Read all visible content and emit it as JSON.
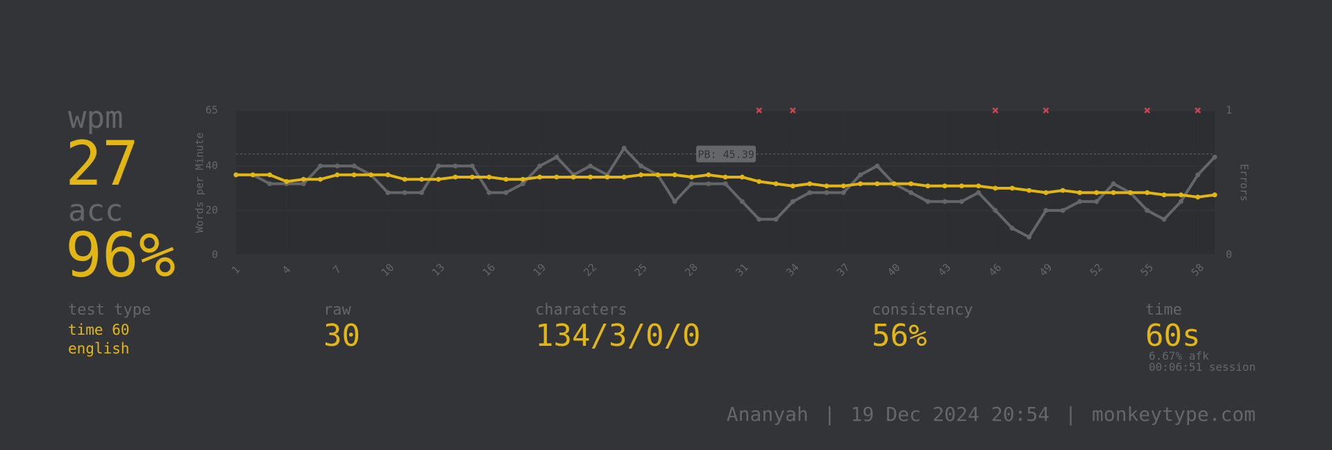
{
  "summary": {
    "wpm_label": "wpm",
    "wpm": "27",
    "acc_label": "acc",
    "acc": "96%"
  },
  "stats": {
    "test_type_label": "test type",
    "test_type": "time 60",
    "language": "english",
    "raw_label": "raw",
    "raw": "30",
    "characters_label": "characters",
    "characters": "134/3/0/0",
    "consistency_label": "consistency",
    "consistency": "56%",
    "time_label": "time",
    "time": "60s",
    "afk": "6.67% afk",
    "session": "00:06:51 session"
  },
  "footer": {
    "user": "Ananyah",
    "separator": "|",
    "date": "19 Dec 2024 20:54",
    "site": "monkeytype.com"
  },
  "chart_data": {
    "type": "line",
    "y_label": "Words per Minute",
    "y2_label": "Errors",
    "x": [
      1,
      2,
      3,
      4,
      5,
      6,
      7,
      8,
      9,
      10,
      11,
      12,
      13,
      14,
      15,
      16,
      17,
      18,
      19,
      20,
      21,
      22,
      23,
      24,
      25,
      26,
      27,
      28,
      29,
      30,
      31,
      32,
      33,
      34,
      35,
      36,
      37,
      38,
      39,
      40,
      41,
      42,
      43,
      44,
      45,
      46,
      47,
      48,
      49,
      50,
      51,
      52,
      53,
      54,
      55,
      56,
      57,
      58,
      59
    ],
    "xlim": [
      1,
      59
    ],
    "xticks": [
      1,
      4,
      7,
      10,
      13,
      16,
      19,
      22,
      25,
      28,
      31,
      34,
      37,
      40,
      43,
      46,
      49,
      52,
      55,
      58
    ],
    "ylim": [
      0,
      65
    ],
    "yticks": [
      0,
      20,
      40,
      65
    ],
    "y2lim": [
      0,
      1
    ],
    "y2ticks": [
      0,
      1
    ],
    "grid": true,
    "series": [
      {
        "name": "raw",
        "color": "#646669",
        "values": [
          36,
          36,
          32,
          32,
          32,
          40,
          40,
          40,
          36,
          28,
          28,
          28,
          40,
          40,
          40,
          28,
          28,
          32,
          40,
          44,
          36,
          40,
          36,
          48,
          40,
          36,
          24,
          32,
          32,
          32,
          24,
          16,
          16,
          24,
          28,
          28,
          28,
          36,
          40,
          32,
          28,
          24,
          24,
          24,
          28,
          20,
          12,
          8,
          20,
          20,
          24,
          24,
          32,
          28,
          20,
          16,
          24,
          36,
          44
        ]
      },
      {
        "name": "wpm",
        "color": "#e2b714",
        "values": [
          36,
          36,
          36,
          33,
          34,
          34,
          36,
          36,
          36,
          36,
          34,
          34,
          34,
          35,
          35,
          35,
          34,
          34,
          35,
          35,
          35,
          35,
          35,
          35,
          36,
          36,
          36,
          35,
          36,
          35,
          35,
          33,
          32,
          31,
          32,
          31,
          31,
          32,
          32,
          32,
          32,
          31,
          31,
          31,
          31,
          30,
          30,
          29,
          28,
          29,
          28,
          28,
          28,
          28,
          28,
          27,
          27,
          26,
          27
        ]
      },
      {
        "name": "errors",
        "type": "scatter",
        "axis": "y2",
        "color": "#ca4754",
        "x": [
          32,
          34,
          46,
          49,
          55,
          58
        ],
        "values": [
          1,
          1,
          1,
          1,
          1,
          1
        ]
      }
    ],
    "annotations": [
      {
        "text": "PB: 45.39",
        "value": 45.39
      }
    ]
  }
}
